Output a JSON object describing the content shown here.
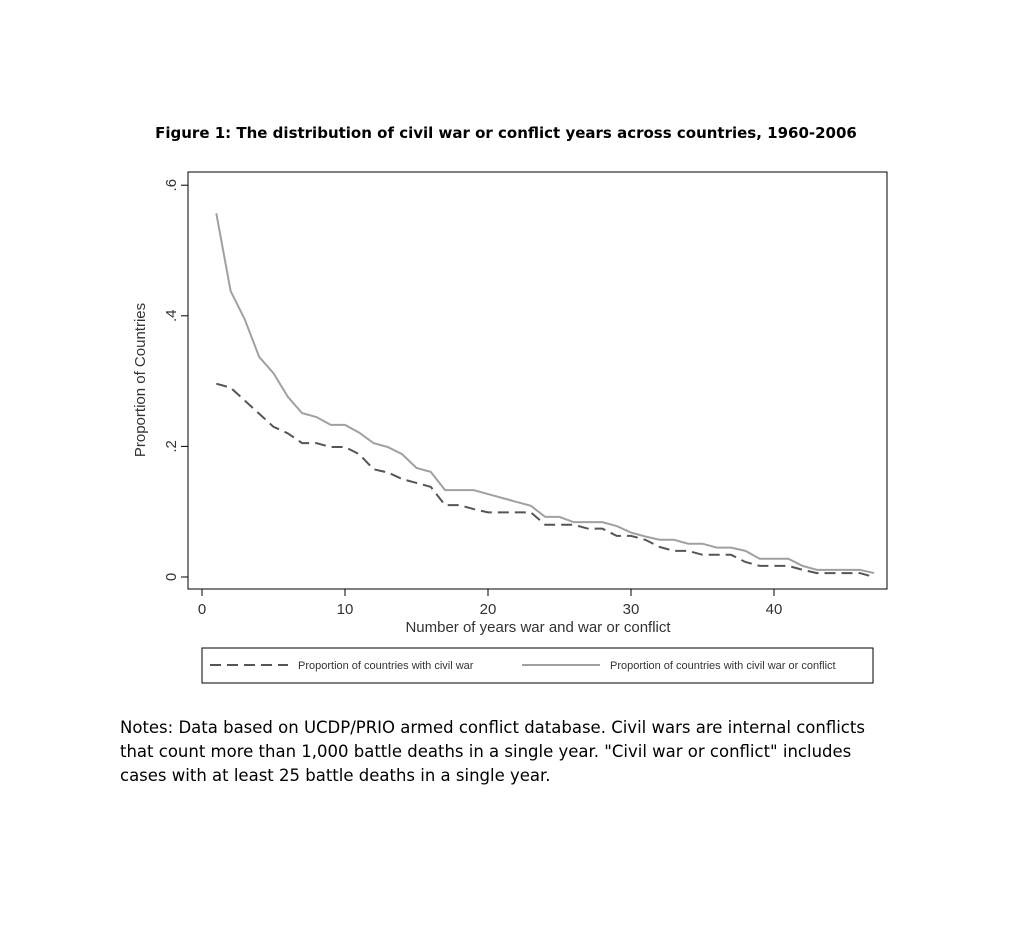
{
  "chart_data": {
    "type": "line",
    "title": "Figure 1: The distribution of civil war or conflict years across countries, 1960-2006",
    "xlabel": "Number of years war and war or conflict",
    "ylabel": "Proportion of Countries",
    "xlim": [
      0,
      48
    ],
    "ylim": [
      0,
      0.6
    ],
    "xticks": [
      0,
      10,
      20,
      30,
      40
    ],
    "xtick_labels": [
      "0",
      "10",
      "20",
      "30",
      "40"
    ],
    "yticks": [
      0,
      0.2,
      0.4,
      0.6
    ],
    "ytick_labels": [
      "0",
      ".2",
      ".4",
      ".6"
    ],
    "grid": false,
    "legend_position": "bottom",
    "x": [
      1,
      2,
      3,
      4,
      5,
      6,
      7,
      8,
      9,
      10,
      11,
      12,
      13,
      14,
      15,
      16,
      17,
      18,
      19,
      20,
      21,
      22,
      23,
      24,
      25,
      26,
      27,
      28,
      29,
      30,
      31,
      32,
      33,
      34,
      35,
      36,
      37,
      38,
      39,
      40,
      41,
      42,
      43,
      44,
      45,
      46,
      47
    ],
    "series": [
      {
        "name": "Proportion of countries with civil war",
        "style": "dashed",
        "color": "#555555",
        "values": [
          0.296,
          0.29,
          0.27,
          0.25,
          0.23,
          0.22,
          0.205,
          0.205,
          0.199,
          0.199,
          0.188,
          0.165,
          0.16,
          0.15,
          0.144,
          0.138,
          0.11,
          0.11,
          0.104,
          0.099,
          0.099,
          0.099,
          0.099,
          0.08,
          0.08,
          0.08,
          0.074,
          0.074,
          0.063,
          0.063,
          0.057,
          0.046,
          0.04,
          0.04,
          0.034,
          0.034,
          0.034,
          0.023,
          0.017,
          0.017,
          0.017,
          0.011,
          0.006,
          0.006,
          0.006,
          0.006,
          0.0
        ]
      },
      {
        "name": "Proportion of countries with civil war or conflict",
        "style": "solid",
        "color": "#a0a0a0",
        "values": [
          0.557,
          0.438,
          0.394,
          0.337,
          0.312,
          0.276,
          0.251,
          0.245,
          0.233,
          0.233,
          0.221,
          0.205,
          0.199,
          0.188,
          0.167,
          0.161,
          0.133,
          0.133,
          0.133,
          0.127,
          0.121,
          0.115,
          0.109,
          0.092,
          0.092,
          0.084,
          0.084,
          0.084,
          0.078,
          0.068,
          0.062,
          0.057,
          0.057,
          0.051,
          0.051,
          0.045,
          0.045,
          0.04,
          0.028,
          0.028,
          0.028,
          0.017,
          0.011,
          0.011,
          0.011,
          0.011,
          0.006
        ]
      }
    ]
  },
  "notes": "Notes: Data based on UCDP/PRIO armed conflict database. Civil wars are internal conflicts that count more than 1,000 battle deaths in a single year. \"Civil war or conflict\" includes cases with at least 25 battle deaths in a single year."
}
